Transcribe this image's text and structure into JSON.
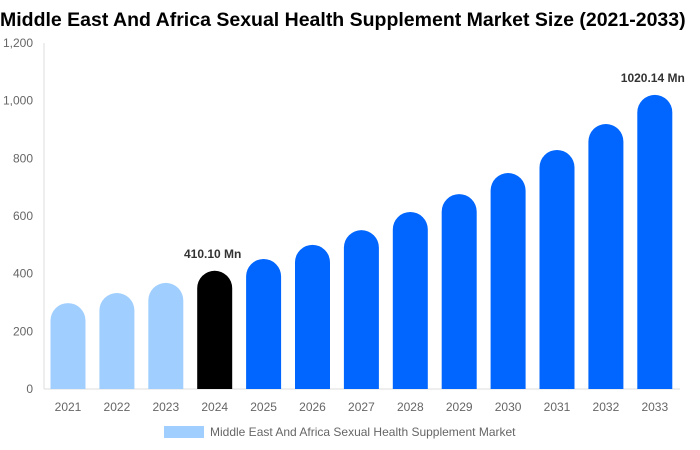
{
  "chart_data": {
    "type": "bar",
    "title": "Middle East And Africa Sexual Health Supplement Market Size (2021-2033)",
    "categories": [
      "2021",
      "2022",
      "2023",
      "2024",
      "2025",
      "2026",
      "2027",
      "2028",
      "2029",
      "2030",
      "2031",
      "2032",
      "2033"
    ],
    "series": [
      {
        "name": "Middle East And Africa Sexual Health Supplement Market",
        "values": [
          298,
          333,
          368,
          410.1,
          451,
          500,
          551,
          614,
          676,
          749,
          829,
          919,
          1020.14
        ]
      }
    ],
    "data_labels": {
      "3": "410.10 Mn",
      "12": "1020.14 Mn"
    },
    "ylim": [
      0,
      1200
    ],
    "yticks": [
      0,
      200,
      400,
      600,
      800,
      1000,
      1200
    ],
    "ytick_labels": [
      "0",
      "200",
      "400",
      "600",
      "800",
      "1,000",
      "1,200"
    ],
    "grid": false,
    "legend": "bottom",
    "colors": {
      "historical": "#a0cfff",
      "base_year": "#000000",
      "forecast": "#0066ff"
    }
  }
}
